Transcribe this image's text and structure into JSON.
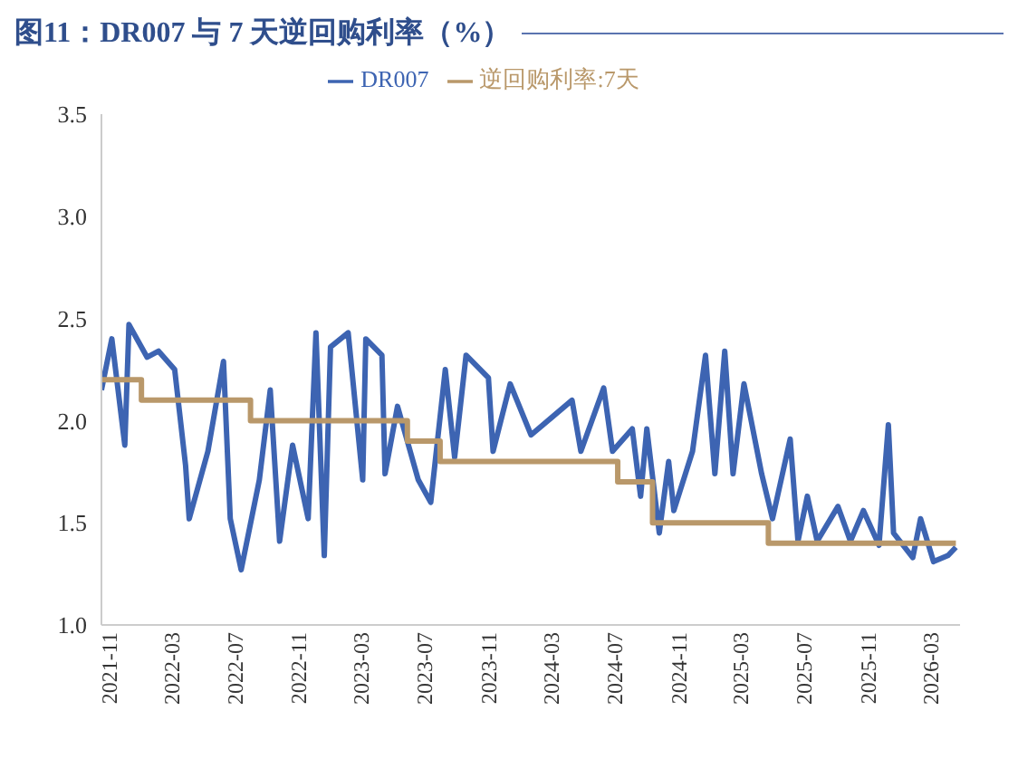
{
  "chart_data": {
    "type": "line",
    "title": "图11：DR007 与 7 天逆回购利率（%）",
    "xlim": [
      "2021-11-01",
      "2026-05-12"
    ],
    "xticks": [
      {
        "value": "2021-11-01",
        "label": "2021-11"
      },
      {
        "value": "2022-03-01",
        "label": "2022-03"
      },
      {
        "value": "2022-07-01",
        "label": "2022-07"
      },
      {
        "value": "2022-11-01",
        "label": "2022-11"
      },
      {
        "value": "2023-03-01",
        "label": "2023-03"
      },
      {
        "value": "2023-07-01",
        "label": "2023-07"
      },
      {
        "value": "2023-11-01",
        "label": "2023-11"
      },
      {
        "value": "2024-03-01",
        "label": "2024-03"
      },
      {
        "value": "2024-07-01",
        "label": "2024-07"
      },
      {
        "value": "2024-11-01",
        "label": "2024-11"
      },
      {
        "value": "2025-03-01",
        "label": "2025-03"
      },
      {
        "value": "2025-07-01",
        "label": "2025-07"
      },
      {
        "value": "2025-11-01",
        "label": "2025-11"
      },
      {
        "value": "2026-03-01",
        "label": "2026-03"
      }
    ],
    "ylim": [
      1,
      3.5
    ],
    "yticks": [
      {
        "value": 1,
        "label": "1.0"
      },
      {
        "value": 1.5,
        "label": "1.5"
      },
      {
        "value": 2,
        "label": "2.0"
      },
      {
        "value": 2.5,
        "label": "2.5"
      },
      {
        "value": 3,
        "label": "3.0"
      },
      {
        "value": 3.5,
        "label": "3.5"
      }
    ],
    "grid": false,
    "legend": "top",
    "marker": "none",
    "line_style": "solid",
    "series": [
      {
        "name": "DR007",
        "type": "line",
        "color": "#3d64b2",
        "x": [
          "2021-11-01",
          "2021-11-21",
          "2021-12-16",
          "2021-12-24",
          "2022-01-28",
          "2022-02-19",
          "2022-03-22",
          "2022-04-12",
          "2022-04-19",
          "2022-05-25",
          "2022-06-24",
          "2022-07-07",
          "2022-07-28",
          "2022-09-01",
          "2022-09-22",
          "2022-10-10",
          "2022-11-04",
          "2022-12-04",
          "2022-12-19",
          "2023-01-04",
          "2023-01-16",
          "2023-02-19",
          "2023-03-19",
          "2023-03-25",
          "2023-04-25",
          "2023-05-01",
          "2023-05-25",
          "2023-07-04",
          "2023-07-28",
          "2023-08-25",
          "2023-09-12",
          "2023-10-04",
          "2023-11-16",
          "2023-11-25",
          "2023-12-28",
          "2024-02-06",
          "2024-03-19",
          "2024-04-25",
          "2024-05-12",
          "2024-06-25",
          "2024-07-12",
          "2024-08-19",
          "2024-09-04",
          "2024-09-16",
          "2024-10-10",
          "2024-10-28",
          "2024-11-07",
          "2024-12-13",
          "2025-01-07",
          "2025-01-25",
          "2025-02-13",
          "2025-03-01",
          "2025-03-22",
          "2025-04-25",
          "2025-05-16",
          "2025-06-19",
          "2025-07-04",
          "2025-07-22",
          "2025-08-10",
          "2025-09-19",
          "2025-10-13",
          "2025-11-07",
          "2025-12-07",
          "2025-12-25",
          "2026-01-04",
          "2026-02-10",
          "2026-02-25",
          "2026-03-22",
          "2026-04-19",
          "2026-05-04"
        ],
        "values": [
          2.15,
          2.4,
          1.88,
          2.47,
          2.31,
          2.34,
          2.25,
          1.78,
          1.52,
          1.85,
          2.29,
          1.52,
          1.27,
          1.71,
          2.15,
          1.41,
          1.88,
          1.52,
          2.43,
          1.34,
          2.36,
          2.43,
          1.71,
          2.4,
          2.32,
          1.74,
          2.07,
          1.71,
          1.6,
          2.25,
          1.82,
          2.32,
          2.21,
          1.85,
          2.18,
          1.93,
          2.02,
          2.1,
          1.85,
          2.16,
          1.85,
          1.96,
          1.63,
          1.96,
          1.45,
          1.8,
          1.56,
          1.85,
          2.32,
          1.74,
          2.34,
          1.74,
          2.18,
          1.74,
          1.52,
          1.91,
          1.41,
          1.63,
          1.41,
          1.58,
          1.41,
          1.56,
          1.39,
          1.98,
          1.45,
          1.33,
          1.52,
          1.31,
          1.34,
          1.38
        ]
      },
      {
        "name": "逆回购利率:7天",
        "type": "step",
        "color": "#b9986a",
        "x": [
          "2021-11-01",
          "2022-01-17",
          "2022-08-15",
          "2023-06-13",
          "2023-08-15",
          "2024-07-22",
          "2024-09-27",
          "2025-05-08",
          "2026-05-04"
        ],
        "values": [
          2.2,
          2.1,
          2.0,
          1.9,
          1.8,
          1.7,
          1.5,
          1.4,
          1.4
        ]
      }
    ]
  }
}
